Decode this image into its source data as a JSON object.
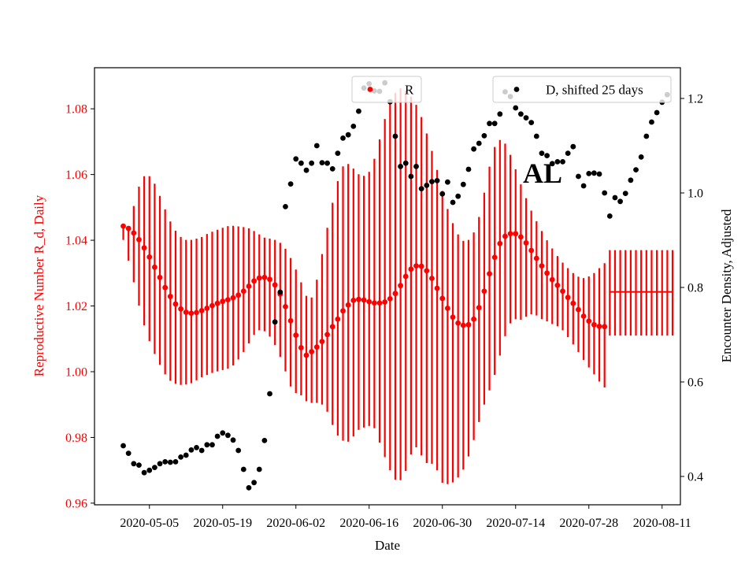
{
  "chart_data": {
    "type": "scatter",
    "annotation": "AL",
    "xlabel": "Date",
    "ylabel_left": "Reproductive Number R_d, Daily",
    "ylabel_right": "Encounter Density, Adjusted",
    "colors": {
      "r_series": "#ff0000",
      "d_series": "#000000"
    },
    "x_ticks": [
      "2020-05-05",
      "2020-05-19",
      "2020-06-02",
      "2020-06-16",
      "2020-06-30",
      "2020-07-14",
      "2020-07-28",
      "2020-08-11"
    ],
    "x_range_days": [
      -10.5,
      101.5
    ],
    "x_tick_days": [
      0,
      14,
      28,
      42,
      56,
      70,
      84,
      98
    ],
    "ylim_left": [
      0.9595,
      1.0925
    ],
    "yticks_left": [
      0.96,
      0.98,
      1.0,
      1.02,
      1.04,
      1.06,
      1.08
    ],
    "ylim_right": [
      0.34,
      1.265
    ],
    "yticks_right": [
      0.4,
      0.6,
      0.8,
      1.0,
      1.2
    ],
    "legend": [
      {
        "label": "R",
        "location": "top-center"
      },
      {
        "label": "D, shifted 25 days",
        "location": "top-right"
      }
    ],
    "r_start_day": -5,
    "r_values": [
      1.0443,
      1.0436,
      1.0422,
      1.0402,
      1.0377,
      1.0349,
      1.0318,
      1.0287,
      1.0256,
      1.0229,
      1.0206,
      1.0191,
      1.0181,
      1.0178,
      1.018,
      1.0186,
      1.0193,
      1.0201,
      1.0208,
      1.0214,
      1.0219,
      1.0225,
      1.0233,
      1.0245,
      1.026,
      1.0276,
      1.0285,
      1.0287,
      1.0281,
      1.0264,
      1.0236,
      1.0198,
      1.0155,
      1.0111,
      1.0073,
      1.005,
      1.0061,
      1.0075,
      1.0092,
      1.0113,
      1.0137,
      1.016,
      1.0185,
      1.0203,
      1.0217,
      1.022,
      1.0218,
      1.0213,
      1.0209,
      1.0209,
      1.0212,
      1.0222,
      1.0238,
      1.0262,
      1.029,
      1.0312,
      1.0322,
      1.0321,
      1.0307,
      1.0284,
      1.0254,
      1.0223,
      1.0193,
      1.0166,
      1.0148,
      1.0141,
      1.0143,
      1.016,
      1.0195,
      1.0245,
      1.0298,
      1.0348,
      1.039,
      1.0412,
      1.042,
      1.042,
      1.041,
      1.0392,
      1.0369,
      1.0345,
      1.0322,
      1.03,
      1.028,
      1.0263,
      1.0245,
      1.0226,
      1.0208,
      1.0189,
      1.0169,
      1.0154,
      1.0143,
      1.0138,
      1.0137
    ],
    "r_lower": [
      1.0401,
      1.0338,
      1.0272,
      1.0201,
      1.0141,
      1.0093,
      1.0054,
      1.0021,
      0.9992,
      0.9972,
      0.9963,
      0.996,
      0.9961,
      0.9965,
      0.9974,
      0.9983,
      0.999,
      0.9996,
      1.0001,
      1.0005,
      1.0009,
      1.0019,
      1.0037,
      1.006,
      1.0086,
      1.0112,
      1.0126,
      1.0123,
      1.0107,
      1.0081,
      1.0045,
      1.0001,
      0.9955,
      0.9935,
      0.9928,
      0.991,
      0.9905,
      0.9905,
      0.99,
      0.9878,
      0.9838,
      0.9806,
      0.979,
      0.9787,
      0.9803,
      0.9823,
      0.983,
      0.9835,
      0.9828,
      0.9784,
      0.974,
      0.97,
      0.9671,
      0.967,
      0.9698,
      0.9748,
      0.977,
      0.9745,
      0.9722,
      0.972,
      0.97,
      0.9662,
      0.9658,
      0.9663,
      0.9678,
      0.9702,
      0.9742,
      0.9792,
      0.9847,
      0.99,
      0.9943,
      0.999,
      1.0049,
      1.0108,
      1.0147,
      1.016,
      1.0158,
      1.0167,
      1.0175,
      1.0171,
      1.016,
      1.0153,
      1.0145,
      1.0138,
      1.0126,
      1.0105,
      1.0083,
      1.006,
      1.0036,
      1.0013,
      0.9992,
      0.997,
      0.9952
    ],
    "r_upper": [
      1.0441,
      1.0434,
      1.0504,
      1.0563,
      1.0595,
      1.0595,
      1.0572,
      1.0535,
      1.0494,
      1.0457,
      1.0429,
      1.041,
      1.0401,
      1.0401,
      1.0405,
      1.041,
      1.0419,
      1.0426,
      1.0432,
      1.0438,
      1.0443,
      1.0444,
      1.0442,
      1.044,
      1.0436,
      1.0428,
      1.0418,
      1.0408,
      1.0405,
      1.0401,
      1.0392,
      1.0374,
      1.0346,
      1.0311,
      1.0272,
      1.0231,
      1.0226,
      1.028,
      1.0358,
      1.0438,
      1.0514,
      1.058,
      1.0625,
      1.0632,
      1.0618,
      1.0601,
      1.0596,
      1.0608,
      1.0648,
      1.0707,
      1.0769,
      1.0818,
      1.0848,
      1.0862,
      1.0855,
      1.0837,
      1.0812,
      1.0775,
      1.0725,
      1.0672,
      1.0614,
      1.055,
      1.0495,
      1.0452,
      1.0418,
      1.0398,
      1.0401,
      1.0424,
      1.0471,
      1.0545,
      1.0624,
      1.0684,
      1.0705,
      1.0694,
      1.066,
      1.0616,
      1.057,
      1.0528,
      1.049,
      1.0458,
      1.0428,
      1.04,
      1.0375,
      1.0352,
      1.0332,
      1.0315,
      1.03,
      1.0289,
      1.0285,
      1.029,
      1.03,
      1.0315,
      1.033
    ],
    "r_forecast": {
      "start_day": 88,
      "end_day": 100,
      "value": 1.0243,
      "lower": 1.011,
      "upper": 1.037
    },
    "d_points": [
      {
        "day": -5,
        "value": 0.465
      },
      {
        "day": -4,
        "value": 0.449
      },
      {
        "day": -3,
        "value": 0.427
      },
      {
        "day": -2,
        "value": 0.424
      },
      {
        "day": -1,
        "value": 0.408
      },
      {
        "day": 0,
        "value": 0.413
      },
      {
        "day": 1,
        "value": 0.419
      },
      {
        "day": 2,
        "value": 0.427
      },
      {
        "day": 3,
        "value": 0.431
      },
      {
        "day": 4,
        "value": 0.43
      },
      {
        "day": 5,
        "value": 0.431
      },
      {
        "day": 6,
        "value": 0.441
      },
      {
        "day": 7,
        "value": 0.445
      },
      {
        "day": 8,
        "value": 0.456
      },
      {
        "day": 9,
        "value": 0.461
      },
      {
        "day": 10,
        "value": 0.455
      },
      {
        "day": 11,
        "value": 0.467
      },
      {
        "day": 12,
        "value": 0.467
      },
      {
        "day": 13,
        "value": 0.485
      },
      {
        "day": 14,
        "value": 0.492
      },
      {
        "day": 15,
        "value": 0.487
      },
      {
        "day": 16,
        "value": 0.477
      },
      {
        "day": 17,
        "value": 0.455
      },
      {
        "day": 18,
        "value": 0.415
      },
      {
        "day": 19,
        "value": 0.376
      },
      {
        "day": 20,
        "value": 0.387
      },
      {
        "day": 21,
        "value": 0.415
      },
      {
        "day": 22,
        "value": 0.476
      },
      {
        "day": 23,
        "value": 0.575
      },
      {
        "day": 24,
        "value": 0.727
      },
      {
        "day": 25,
        "value": 0.79
      },
      {
        "day": 26,
        "value": 0.971
      },
      {
        "day": 27,
        "value": 1.019
      },
      {
        "day": 28,
        "value": 1.072
      },
      {
        "day": 29,
        "value": 1.063
      },
      {
        "day": 30,
        "value": 1.048
      },
      {
        "day": 31,
        "value": 1.063
      },
      {
        "day": 32,
        "value": 1.1
      },
      {
        "day": 33,
        "value": 1.064
      },
      {
        "day": 34,
        "value": 1.063
      },
      {
        "day": 35,
        "value": 1.051
      },
      {
        "day": 36,
        "value": 1.084
      },
      {
        "day": 37,
        "value": 1.116
      },
      {
        "day": 38,
        "value": 1.123
      },
      {
        "day": 39,
        "value": 1.141
      },
      {
        "day": 40,
        "value": 1.173
      },
      {
        "day": 41,
        "value": 1.222
      },
      {
        "day": 42,
        "value": 1.231
      },
      {
        "day": 43,
        "value": 1.216
      },
      {
        "day": 44,
        "value": 1.215
      },
      {
        "day": 45,
        "value": 1.233
      },
      {
        "day": 46,
        "value": 1.193
      },
      {
        "day": 47,
        "value": 1.12
      },
      {
        "day": 48,
        "value": 1.056
      },
      {
        "day": 49,
        "value": 1.063
      },
      {
        "day": 50,
        "value": 1.035
      },
      {
        "day": 51,
        "value": 1.056
      },
      {
        "day": 52,
        "value": 1.009
      },
      {
        "day": 53,
        "value": 1.016
      },
      {
        "day": 54,
        "value": 1.024
      },
      {
        "day": 55,
        "value": 1.026
      },
      {
        "day": 56,
        "value": 0.998
      },
      {
        "day": 57,
        "value": 1.023
      },
      {
        "day": 58,
        "value": 0.98
      },
      {
        "day": 59,
        "value": 0.993
      },
      {
        "day": 60,
        "value": 1.018
      },
      {
        "day": 61,
        "value": 1.05
      },
      {
        "day": 62,
        "value": 1.093
      },
      {
        "day": 63,
        "value": 1.105
      },
      {
        "day": 64,
        "value": 1.121
      },
      {
        "day": 65,
        "value": 1.147
      },
      {
        "day": 66,
        "value": 1.147
      },
      {
        "day": 67,
        "value": 1.167
      },
      {
        "day": 68,
        "value": 1.214
      },
      {
        "day": 69,
        "value": 1.204
      },
      {
        "day": 70,
        "value": 1.18
      },
      {
        "day": 71,
        "value": 1.167
      },
      {
        "day": 72,
        "value": 1.159
      },
      {
        "day": 73,
        "value": 1.149
      },
      {
        "day": 74,
        "value": 1.12
      },
      {
        "day": 75,
        "value": 1.084
      },
      {
        "day": 76,
        "value": 1.079
      },
      {
        "day": 77,
        "value": 1.062
      },
      {
        "day": 78,
        "value": 1.066
      },
      {
        "day": 79,
        "value": 1.066
      },
      {
        "day": 80,
        "value": 1.084
      },
      {
        "day": 81,
        "value": 1.098
      },
      {
        "day": 82,
        "value": 1.035
      },
      {
        "day": 83,
        "value": 1.015
      },
      {
        "day": 84,
        "value": 1.041
      },
      {
        "day": 85,
        "value": 1.042
      },
      {
        "day": 86,
        "value": 1.04
      },
      {
        "day": 87,
        "value": 1.0
      },
      {
        "day": 88,
        "value": 0.951
      },
      {
        "day": 89,
        "value": 0.99
      },
      {
        "day": 90,
        "value": 0.982
      },
      {
        "day": 91,
        "value": 0.999
      },
      {
        "day": 92,
        "value": 1.027
      },
      {
        "day": 93,
        "value": 1.049
      },
      {
        "day": 94,
        "value": 1.076
      },
      {
        "day": 95,
        "value": 1.12
      },
      {
        "day": 96,
        "value": 1.15
      },
      {
        "day": 97,
        "value": 1.17
      },
      {
        "day": 98,
        "value": 1.192
      },
      {
        "day": 99,
        "value": 1.208
      }
    ]
  }
}
